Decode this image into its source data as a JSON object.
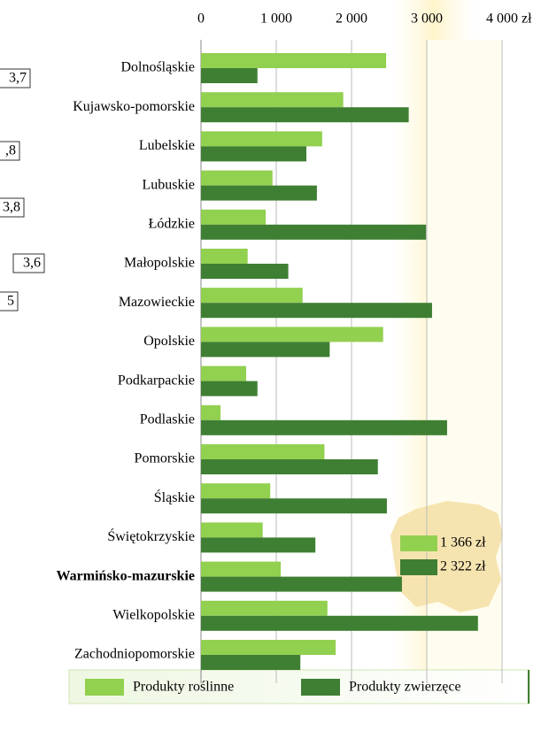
{
  "chart_data": {
    "type": "bar",
    "orientation": "horizontal",
    "categories": [
      "Dolnośląskie",
      "Kujawsko-pomorskie",
      "Lubelskie",
      "Lubuskie",
      "Łódzkie",
      "Małopolskie",
      "Mazowieckie",
      "Opolskie",
      "Podkarpackie",
      "Podlaskie",
      "Pomorskie",
      "Śląskie",
      "Świętokrzyskie",
      "Warmińsko-mazurskie",
      "Wielkopolskie",
      "Zachodniopomorskie"
    ],
    "highlight_index": 13,
    "series": [
      {
        "name": "Produkty roślinne",
        "color": "#92d050",
        "values": [
          2460,
          1890,
          1610,
          950,
          860,
          620,
          1350,
          2420,
          600,
          260,
          1640,
          920,
          820,
          1060,
          1680,
          1790
        ]
      },
      {
        "name": "Produkty zwierzęce",
        "color": "#3f7f33",
        "values": [
          750,
          2760,
          1400,
          1540,
          2990,
          1160,
          3070,
          1710,
          750,
          3270,
          2350,
          2470,
          1520,
          2670,
          3680,
          1320
        ]
      }
    ],
    "xlim": [
      0,
      4000
    ],
    "xticks": [
      0,
      {
        "value": 1000,
        "label": "1 000"
      },
      {
        "value": 2000,
        "label": "2 000"
      },
      {
        "value": 3000,
        "label": "3 000"
      },
      {
        "value": 4000,
        "label": "4 000 zł"
      }
    ],
    "grid": true,
    "map_legend": [
      "1 366 zł",
      "2 322 zł"
    ],
    "side_labels": [
      "3,7",
      ",8",
      "3,8",
      "3,6",
      "5"
    ]
  }
}
